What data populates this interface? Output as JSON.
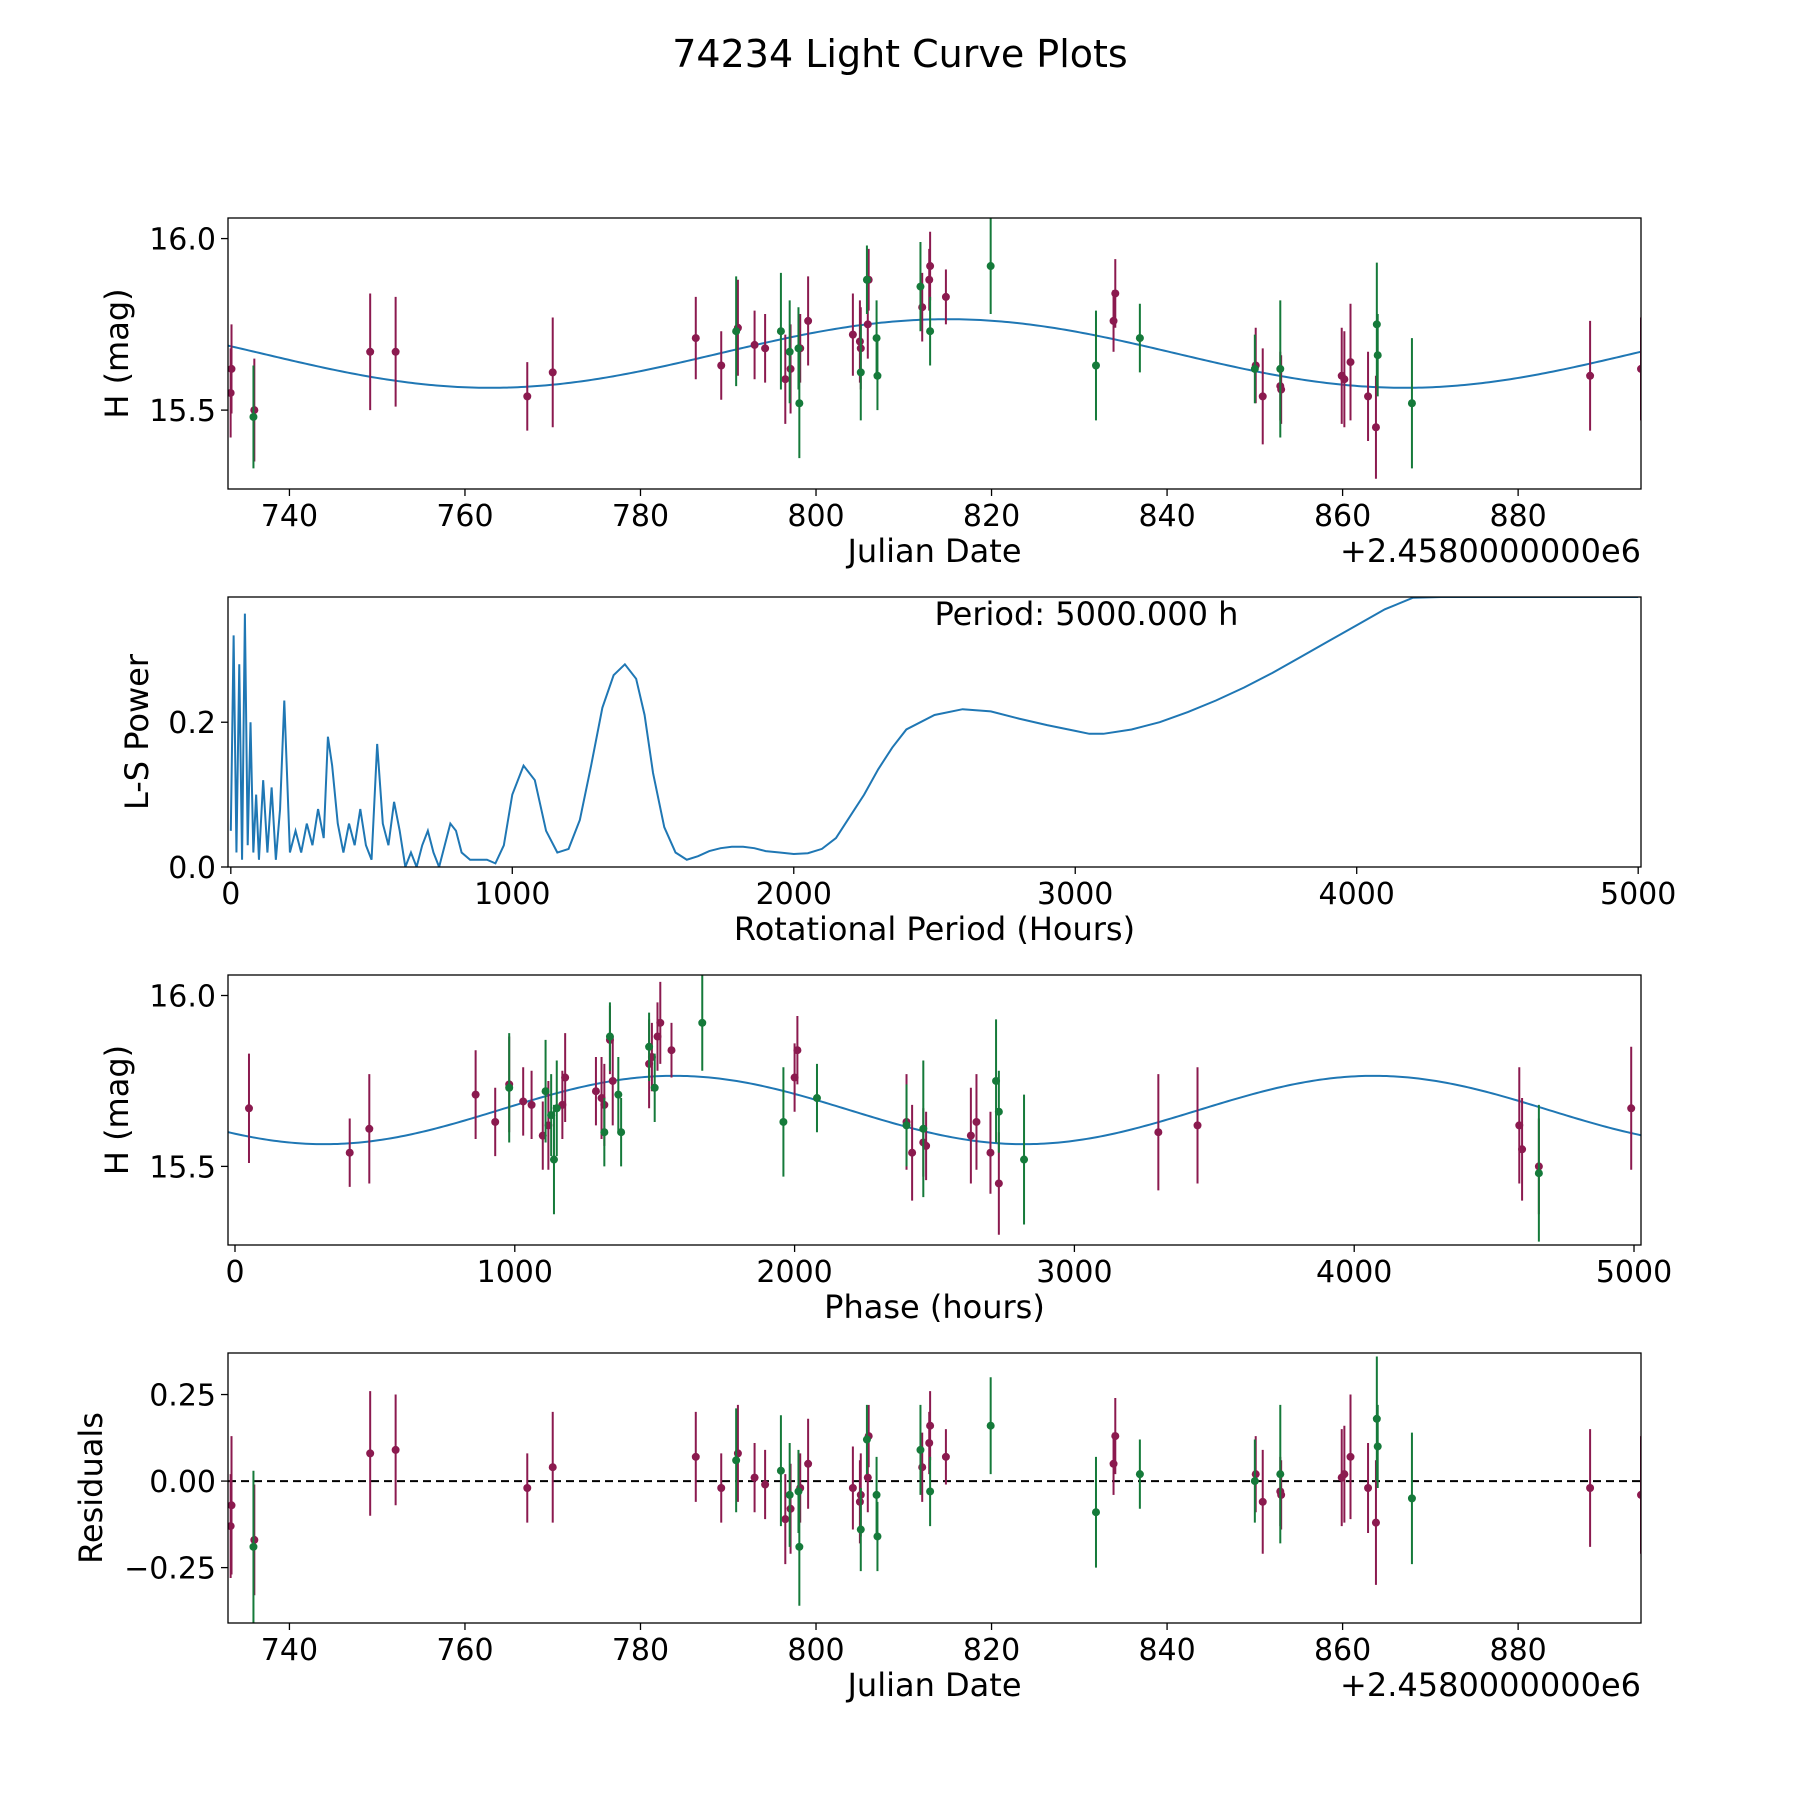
{
  "figure": {
    "title": "74234 Light Curve Plots"
  },
  "colors": {
    "fit": "#1f77b4",
    "series_a": "#8b1a4f",
    "series_b": "#157a3a",
    "axis": "#000000"
  },
  "chart_data": [
    {
      "id": "lightcurve",
      "type": "scatter",
      "xlabel": "Julian Date",
      "ylabel": "H (mag)",
      "offset_text": "+2.4580000000e6",
      "xlim": [
        733,
        894
      ],
      "ylim": [
        15.27,
        16.06
      ],
      "xticks": [
        740,
        760,
        780,
        800,
        820,
        840,
        860,
        880
      ],
      "xtick_labels": [
        "740",
        "760",
        "780",
        "800",
        "820",
        "840",
        "860",
        "880"
      ],
      "yticks": [
        15.5,
        16.0
      ],
      "ytick_labels": [
        "15.5",
        "16.0"
      ],
      "fit": {
        "mean": 15.665,
        "amp": 0.1,
        "period_days": 104.2,
        "peak_x": 815
      },
      "series": [
        {
          "name": "series_a",
          "color_key": "series_a",
          "x": [
            733.3,
            733.4,
            736.0,
            749.2,
            752.1,
            767.1,
            770.0,
            786.3,
            789.2,
            791.1,
            793.0,
            794.2,
            796.5,
            797.1,
            798.2,
            799.1,
            804.2,
            805.0,
            805.1,
            805.9,
            806.0,
            812.1,
            812.9,
            813.0,
            814.8,
            833.9,
            834.1,
            850.1,
            850.9,
            852.9,
            853.0,
            859.9,
            860.2,
            860.9,
            862.9,
            863.8,
            888.2,
            894.0
          ],
          "y": [
            15.55,
            15.62,
            15.5,
            15.67,
            15.67,
            15.54,
            15.61,
            15.71,
            15.63,
            15.74,
            15.69,
            15.68,
            15.59,
            15.62,
            15.68,
            15.76,
            15.72,
            15.7,
            15.68,
            15.75,
            15.88,
            15.8,
            15.88,
            15.92,
            15.83,
            15.76,
            15.84,
            15.63,
            15.54,
            15.57,
            15.56,
            15.6,
            15.59,
            15.64,
            15.54,
            15.45,
            15.6,
            15.62
          ],
          "err": [
            0.13,
            0.13,
            0.15,
            0.17,
            0.16,
            0.1,
            0.16,
            0.12,
            0.1,
            0.14,
            0.1,
            0.1,
            0.13,
            0.13,
            0.1,
            0.13,
            0.12,
            0.12,
            0.12,
            0.1,
            0.09,
            0.1,
            0.09,
            0.1,
            0.08,
            0.09,
            0.1,
            0.11,
            0.14,
            0.1,
            0.1,
            0.14,
            0.14,
            0.17,
            0.13,
            0.15,
            0.16,
            0.15
          ]
        },
        {
          "name": "series_b",
          "color_key": "series_b",
          "x": [
            735.9,
            790.9,
            796.0,
            797.0,
            798.0,
            798.1,
            805.1,
            805.8,
            806.9,
            807.0,
            811.9,
            813.0,
            819.9,
            831.9,
            836.9,
            850.0,
            852.9,
            863.9,
            864.0,
            867.9
          ],
          "y": [
            15.48,
            15.73,
            15.73,
            15.67,
            15.68,
            15.52,
            15.61,
            15.88,
            15.71,
            15.6,
            15.86,
            15.73,
            15.92,
            15.63,
            15.71,
            15.62,
            15.62,
            15.75,
            15.66,
            15.52
          ],
          "err": [
            0.15,
            0.16,
            0.17,
            0.15,
            0.12,
            0.16,
            0.14,
            0.1,
            0.11,
            0.1,
            0.13,
            0.1,
            0.14,
            0.16,
            0.1,
            0.1,
            0.2,
            0.18,
            0.12,
            0.19
          ]
        }
      ]
    },
    {
      "id": "periodogram",
      "type": "line",
      "xlabel": "Rotational Period (Hours)",
      "ylabel": "L-S Power",
      "annotation": "Period: 5000.000 h",
      "xlim": [
        -10,
        5010
      ],
      "ylim": [
        0,
        0.373
      ],
      "xticks": [
        0,
        1000,
        2000,
        3000,
        4000,
        5000
      ],
      "xtick_labels": [
        "0",
        "1000",
        "2000",
        "3000",
        "4000",
        "5000"
      ],
      "yticks": [
        0,
        0.2
      ],
      "ytick_labels": [
        "0.0",
        "0.2"
      ],
      "x": [
        0,
        10,
        20,
        30,
        40,
        50,
        60,
        70,
        80,
        90,
        100,
        115,
        130,
        145,
        160,
        175,
        190,
        210,
        230,
        250,
        270,
        290,
        310,
        330,
        345,
        360,
        380,
        400,
        420,
        440,
        460,
        480,
        500,
        520,
        540,
        560,
        580,
        600,
        620,
        640,
        660,
        680,
        700,
        720,
        740,
        760,
        780,
        800,
        820,
        850,
        880,
        910,
        940,
        970,
        1000,
        1040,
        1080,
        1120,
        1160,
        1200,
        1240,
        1280,
        1320,
        1360,
        1400,
        1440,
        1470,
        1500,
        1540,
        1580,
        1620,
        1660,
        1700,
        1740,
        1780,
        1820,
        1860,
        1900,
        1950,
        2000,
        2050,
        2100,
        2150,
        2200,
        2250,
        2300,
        2350,
        2400,
        2500,
        2600,
        2700,
        2800,
        2900,
        3000,
        3050,
        3100,
        3200,
        3300,
        3400,
        3500,
        3600,
        3700,
        3800,
        3900,
        4000,
        4100,
        4200,
        4300,
        4400,
        4500,
        4600,
        4700,
        4800,
        4900,
        5000
      ],
      "y": [
        0.05,
        0.32,
        0.02,
        0.28,
        0.01,
        0.35,
        0.03,
        0.2,
        0.02,
        0.1,
        0.01,
        0.12,
        0.02,
        0.11,
        0.01,
        0.08,
        0.23,
        0.02,
        0.05,
        0.02,
        0.06,
        0.03,
        0.08,
        0.04,
        0.18,
        0.14,
        0.06,
        0.02,
        0.06,
        0.03,
        0.08,
        0.03,
        0.01,
        0.17,
        0.06,
        0.03,
        0.09,
        0.05,
        0.0,
        0.02,
        0.0,
        0.03,
        0.05,
        0.02,
        0.0,
        0.03,
        0.06,
        0.05,
        0.02,
        0.01,
        0.01,
        0.01,
        0.005,
        0.03,
        0.1,
        0.14,
        0.12,
        0.05,
        0.02,
        0.025,
        0.065,
        0.14,
        0.22,
        0.265,
        0.28,
        0.26,
        0.21,
        0.13,
        0.055,
        0.02,
        0.01,
        0.015,
        0.022,
        0.026,
        0.028,
        0.028,
        0.026,
        0.022,
        0.02,
        0.018,
        0.019,
        0.025,
        0.04,
        0.07,
        0.1,
        0.135,
        0.165,
        0.19,
        0.21,
        0.218,
        0.215,
        0.205,
        0.196,
        0.188,
        0.184,
        0.184,
        0.19,
        0.2,
        0.214,
        0.23,
        0.248,
        0.268,
        0.29,
        0.312,
        0.334,
        0.356,
        0.372,
        0.373,
        0.373,
        0.373,
        0.373,
        0.373,
        0.373,
        0.373,
        0.373
      ]
    },
    {
      "id": "phased",
      "type": "scatter",
      "xlabel": "Phase (hours)",
      "ylabel": "H (mag)",
      "xlim": [
        -25,
        5025
      ],
      "ylim": [
        15.27,
        16.06
      ],
      "xticks": [
        0,
        1000,
        2000,
        3000,
        4000,
        5000
      ],
      "xtick_labels": [
        "0",
        "1000",
        "2000",
        "3000",
        "4000",
        "5000"
      ],
      "yticks": [
        15.5,
        16.0
      ],
      "ytick_labels": [
        "15.5",
        "16.0"
      ],
      "fit": {
        "mean": 15.665,
        "amp": 0.1,
        "period_hours": 2500,
        "peak_x": 1570
      },
      "series": [
        {
          "name": "series_a",
          "color_key": "series_a",
          "x": [
            50,
            410,
            480,
            860,
            930,
            980,
            1030,
            1060,
            1100,
            1120,
            1170,
            1180,
            1290,
            1310,
            1320,
            1340,
            1350,
            1480,
            1490,
            1510,
            1520,
            1560,
            2000,
            2010,
            2400,
            2420,
            2460,
            2470,
            2630,
            2650,
            2700,
            2730,
            3300,
            3440,
            4590,
            4600,
            4660,
            4990
          ],
          "y": [
            15.67,
            15.54,
            15.61,
            15.71,
            15.63,
            15.74,
            15.69,
            15.68,
            15.59,
            15.62,
            15.68,
            15.76,
            15.72,
            15.7,
            15.68,
            15.87,
            15.75,
            15.8,
            15.82,
            15.88,
            15.92,
            15.84,
            15.76,
            15.84,
            15.63,
            15.54,
            15.57,
            15.56,
            15.59,
            15.63,
            15.54,
            15.45,
            15.6,
            15.62,
            15.62,
            15.55,
            15.5,
            15.67
          ],
          "err": [
            0.16,
            0.1,
            0.16,
            0.13,
            0.1,
            0.14,
            0.1,
            0.1,
            0.1,
            0.13,
            0.1,
            0.13,
            0.1,
            0.12,
            0.12,
            0.1,
            0.13,
            0.13,
            0.1,
            0.1,
            0.12,
            0.08,
            0.1,
            0.1,
            0.14,
            0.14,
            0.1,
            0.1,
            0.14,
            0.14,
            0.12,
            0.15,
            0.17,
            0.17,
            0.17,
            0.15,
            0.14,
            0.18
          ]
        },
        {
          "name": "series_b",
          "color_key": "series_b",
          "x": [
            980,
            1110,
            1130,
            1140,
            1150,
            1320,
            1340,
            1370,
            1380,
            1480,
            1500,
            1670,
            1960,
            2080,
            2400,
            2460,
            2720,
            2730,
            2820,
            4660
          ],
          "y": [
            15.73,
            15.72,
            15.65,
            15.52,
            15.67,
            15.6,
            15.88,
            15.71,
            15.6,
            15.85,
            15.73,
            15.92,
            15.63,
            15.7,
            15.62,
            15.61,
            15.75,
            15.66,
            15.52,
            15.48
          ],
          "err": [
            0.16,
            0.15,
            0.12,
            0.16,
            0.14,
            0.1,
            0.1,
            0.11,
            0.1,
            0.1,
            0.1,
            0.14,
            0.16,
            0.1,
            0.12,
            0.2,
            0.18,
            0.12,
            0.19,
            0.2
          ]
        }
      ]
    },
    {
      "id": "residuals",
      "type": "scatter",
      "xlabel": "Julian Date",
      "ylabel": "Residuals",
      "offset_text": "+2.4580000000e6",
      "xlim": [
        733,
        894
      ],
      "ylim": [
        -0.41,
        0.37
      ],
      "xticks": [
        740,
        760,
        780,
        800,
        820,
        840,
        860,
        880
      ],
      "xtick_labels": [
        "740",
        "760",
        "780",
        "800",
        "820",
        "840",
        "860",
        "880"
      ],
      "yticks": [
        -0.25,
        0.0,
        0.25
      ],
      "ytick_labels": [
        "−0.25",
        "0.00",
        "0.25"
      ],
      "zero_line": 0,
      "series": [
        {
          "name": "series_a",
          "color_key": "series_a",
          "x": [
            733.3,
            733.4,
            736.0,
            749.2,
            752.1,
            767.1,
            770.0,
            786.3,
            789.2,
            791.1,
            793.0,
            794.2,
            796.5,
            797.1,
            798.2,
            799.1,
            804.2,
            805.0,
            805.1,
            805.9,
            806.0,
            812.1,
            812.9,
            813.0,
            814.8,
            833.9,
            834.1,
            850.1,
            850.9,
            852.9,
            853.0,
            859.9,
            860.2,
            860.9,
            862.9,
            863.8,
            888.2,
            894.0
          ],
          "y": [
            -0.13,
            -0.07,
            -0.17,
            0.08,
            0.09,
            -0.02,
            0.04,
            0.07,
            -0.02,
            0.08,
            0.01,
            -0.01,
            -0.11,
            -0.08,
            -0.02,
            0.05,
            -0.02,
            -0.06,
            -0.04,
            0.01,
            0.13,
            0.04,
            0.11,
            0.16,
            0.07,
            0.05,
            0.13,
            0.02,
            -0.06,
            -0.03,
            -0.04,
            0.01,
            0.02,
            0.07,
            -0.02,
            -0.12,
            -0.02,
            -0.04
          ],
          "err": [
            0.15,
            0.2,
            0.16,
            0.18,
            0.16,
            0.1,
            0.16,
            0.13,
            0.1,
            0.14,
            0.1,
            0.1,
            0.13,
            0.13,
            0.1,
            0.13,
            0.12,
            0.12,
            0.12,
            0.1,
            0.09,
            0.1,
            0.09,
            0.1,
            0.08,
            0.09,
            0.11,
            0.11,
            0.15,
            0.1,
            0.1,
            0.14,
            0.14,
            0.18,
            0.13,
            0.18,
            0.17,
            0.17
          ]
        },
        {
          "name": "series_b",
          "color_key": "series_b",
          "x": [
            735.9,
            790.9,
            796.0,
            797.0,
            798.0,
            798.1,
            805.1,
            805.8,
            806.9,
            807.0,
            811.9,
            813.0,
            819.9,
            831.9,
            836.9,
            850.0,
            852.9,
            863.9,
            864.0,
            867.9
          ],
          "y": [
            -0.19,
            0.06,
            0.03,
            -0.04,
            -0.03,
            -0.19,
            -0.14,
            0.12,
            -0.04,
            -0.16,
            0.09,
            -0.03,
            0.16,
            -0.09,
            0.02,
            0.0,
            0.02,
            0.18,
            0.1,
            -0.05
          ],
          "err": [
            0.22,
            0.15,
            0.16,
            0.15,
            0.12,
            0.17,
            0.12,
            0.1,
            0.11,
            0.1,
            0.13,
            0.1,
            0.14,
            0.16,
            0.1,
            0.12,
            0.2,
            0.18,
            0.12,
            0.19
          ]
        }
      ]
    }
  ]
}
